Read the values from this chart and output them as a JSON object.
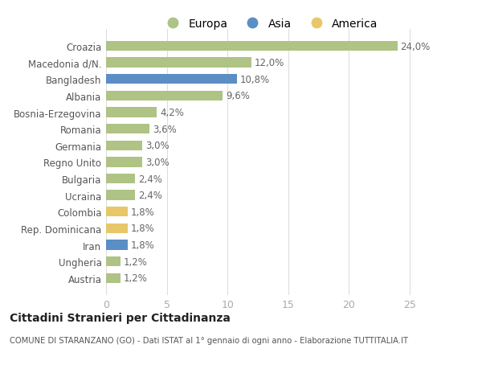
{
  "categories": [
    "Austria",
    "Ungheria",
    "Iran",
    "Rep. Dominicana",
    "Colombia",
    "Ucraina",
    "Bulgaria",
    "Regno Unito",
    "Germania",
    "Romania",
    "Bosnia-Erzegovina",
    "Albania",
    "Bangladesh",
    "Macedonia d/N.",
    "Croazia"
  ],
  "values": [
    1.2,
    1.2,
    1.8,
    1.8,
    1.8,
    2.4,
    2.4,
    3.0,
    3.0,
    3.6,
    4.2,
    9.6,
    10.8,
    12.0,
    24.0
  ],
  "colors": [
    "#aec384",
    "#aec384",
    "#5b8ec4",
    "#e8c76a",
    "#e8c76a",
    "#aec384",
    "#aec384",
    "#aec384",
    "#aec384",
    "#aec384",
    "#aec384",
    "#aec384",
    "#5b8ec4",
    "#aec384",
    "#aec384"
  ],
  "labels": [
    "1,2%",
    "1,2%",
    "1,8%",
    "1,8%",
    "1,8%",
    "2,4%",
    "2,4%",
    "3,0%",
    "3,0%",
    "3,6%",
    "4,2%",
    "9,6%",
    "10,8%",
    "12,0%",
    "24,0%"
  ],
  "europa_color": "#aec384",
  "asia_color": "#5b8ec4",
  "america_color": "#e8c76a",
  "xlim": [
    0,
    27
  ],
  "xticks": [
    0,
    5,
    10,
    15,
    20,
    25
  ],
  "title": "Cittadini Stranieri per Cittadinanza",
  "subtitle": "COMUNE DI STARANZANO (GO) - Dati ISTAT al 1° gennaio di ogni anno - Elaborazione TUTTITALIA.IT",
  "bg_color": "#ffffff",
  "bar_height": 0.6
}
